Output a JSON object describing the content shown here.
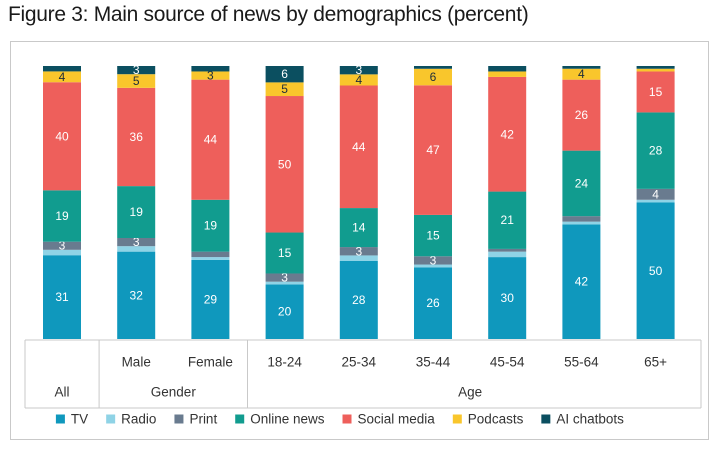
{
  "title": "Figure 3: Main source of news by demographics (percent)",
  "chart_data": {
    "type": "bar",
    "stacked": true,
    "orientation": "vertical",
    "title": "Figure 3: Main source of news by demographics (percent)",
    "ylim": [
      0,
      100
    ],
    "grid": false,
    "legend_position": "bottom",
    "categories": [
      "All",
      "Male",
      "Female",
      "18-24",
      "25-34",
      "35-44",
      "45-54",
      "55-64",
      "65+"
    ],
    "category_groups": [
      {
        "name": "",
        "members": [
          "All"
        ]
      },
      {
        "name": "Gender",
        "members": [
          "Male",
          "Female"
        ]
      },
      {
        "name": "Age",
        "members": [
          "18-24",
          "25-34",
          "35-44",
          "45-54",
          "55-64",
          "65+"
        ]
      }
    ],
    "series": [
      {
        "name": "TV",
        "color": "#0f98bd",
        "values": [
          31,
          32,
          29,
          20,
          28,
          26,
          30,
          42,
          50
        ]
      },
      {
        "name": "Radio",
        "color": "#8fd3e6",
        "values": [
          2,
          2,
          1,
          1,
          2,
          1,
          2,
          1,
          1
        ]
      },
      {
        "name": "Print",
        "color": "#697b8f",
        "values": [
          3,
          3,
          2,
          3,
          3,
          3,
          1,
          2,
          4
        ]
      },
      {
        "name": "Online news",
        "color": "#119c8f",
        "values": [
          19,
          19,
          19,
          15,
          14,
          15,
          21,
          24,
          28
        ]
      },
      {
        "name": "Social media",
        "color": "#ee5f5b",
        "values": [
          40,
          36,
          44,
          50,
          44,
          47,
          42,
          26,
          15
        ]
      },
      {
        "name": "Podcasts",
        "color": "#f9c62c",
        "values": [
          4,
          5,
          3,
          5,
          4,
          6,
          2,
          4,
          1
        ]
      },
      {
        "name": "AI chatbots",
        "color": "#0b4f60",
        "values": [
          2,
          3,
          2,
          6,
          3,
          1,
          2,
          1,
          1
        ]
      }
    ]
  }
}
